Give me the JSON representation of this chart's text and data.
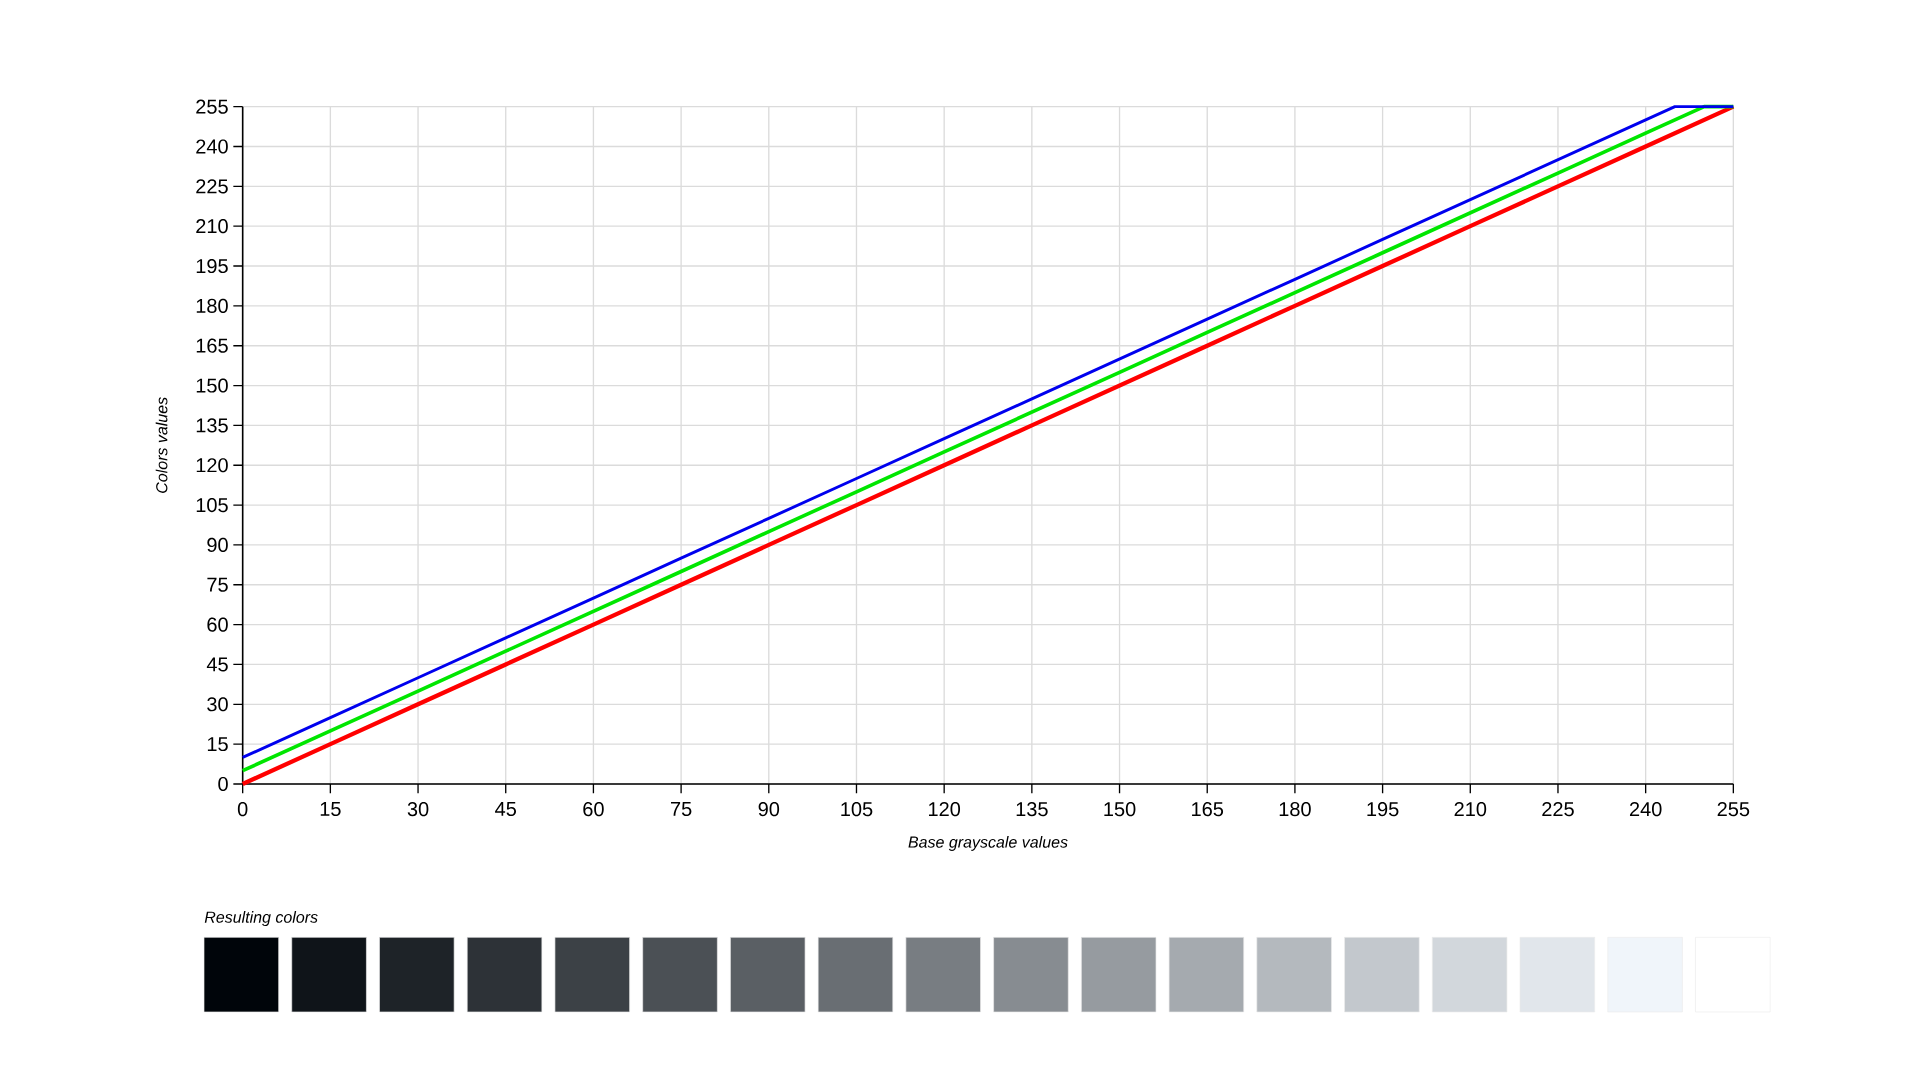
{
  "chart_data": {
    "type": "line",
    "xlabel": "Base grayscale values",
    "ylabel": "Colors values",
    "xlim": [
      0,
      255
    ],
    "ylim": [
      0,
      255
    ],
    "xticks": [
      0,
      15,
      30,
      45,
      60,
      75,
      90,
      105,
      120,
      135,
      150,
      165,
      180,
      195,
      210,
      225,
      240,
      255
    ],
    "yticks": [
      0,
      15,
      30,
      45,
      60,
      75,
      90,
      105,
      120,
      135,
      150,
      165,
      180,
      195,
      210,
      225,
      240,
      255
    ],
    "grid": true,
    "marker": "none",
    "line_style": "solid",
    "annotations": [
      "Resulting colors"
    ],
    "series": [
      {
        "color": "#ff0000",
        "x": [
          0,
          15,
          30,
          45,
          60,
          75,
          90,
          105,
          120,
          135,
          150,
          165,
          180,
          195,
          210,
          225,
          240,
          255
        ],
        "values": [
          0,
          15,
          30,
          45,
          60,
          75,
          90,
          105,
          120,
          135,
          150,
          165,
          180,
          195,
          210,
          225,
          240,
          255
        ]
      },
      {
        "color": "#00e600",
        "x": [
          0,
          15,
          30,
          45,
          60,
          75,
          90,
          105,
          120,
          135,
          150,
          165,
          180,
          195,
          210,
          225,
          240,
          250,
          255
        ],
        "values": [
          5,
          20,
          35,
          50,
          65,
          80,
          95,
          110,
          125,
          140,
          155,
          170,
          185,
          200,
          215,
          230,
          245,
          255,
          255
        ]
      },
      {
        "color": "#0000ee",
        "x": [
          0,
          15,
          30,
          45,
          60,
          75,
          90,
          105,
          120,
          135,
          150,
          165,
          180,
          195,
          210,
          225,
          240,
          245,
          255
        ],
        "values": [
          10,
          25,
          40,
          55,
          70,
          85,
          100,
          115,
          130,
          145,
          160,
          175,
          190,
          205,
          220,
          235,
          250,
          255,
          255
        ]
      }
    ]
  }
}
